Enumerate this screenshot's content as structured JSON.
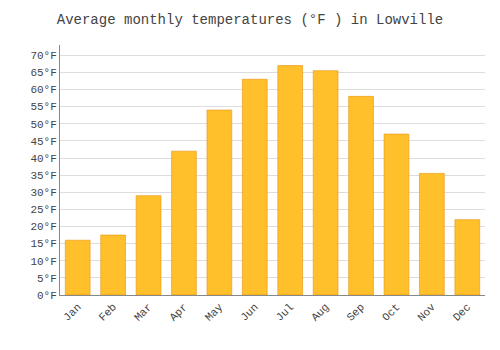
{
  "chart_data": {
    "type": "bar",
    "title": "Average monthly temperatures (°F ) in Lowville",
    "categories": [
      "Jan",
      "Feb",
      "Mar",
      "Apr",
      "May",
      "Jun",
      "Jul",
      "Aug",
      "Sep",
      "Oct",
      "Nov",
      "Dec"
    ],
    "values": [
      16,
      17.5,
      29,
      42,
      54,
      63,
      67,
      65.5,
      58,
      47,
      35.5,
      22
    ],
    "color": "#FFC02C",
    "ylim": [
      0,
      73
    ],
    "yticks": [
      {
        "value": 0,
        "label": "0°F"
      },
      {
        "value": 5,
        "label": "5°F"
      },
      {
        "value": 10,
        "label": "10°F"
      },
      {
        "value": 15,
        "label": "15°F"
      },
      {
        "value": 20,
        "label": "20°F"
      },
      {
        "value": 25,
        "label": "25°F"
      },
      {
        "value": 30,
        "label": "30°F"
      },
      {
        "value": 35,
        "label": "35°F"
      },
      {
        "value": 40,
        "label": "40°F"
      },
      {
        "value": 45,
        "label": "45°F"
      },
      {
        "value": 50,
        "label": "50°F"
      },
      {
        "value": 55,
        "label": "55°F"
      },
      {
        "value": 60,
        "label": "60°F"
      },
      {
        "value": 65,
        "label": "65°F"
      },
      {
        "value": 70,
        "label": "70°F"
      }
    ],
    "grid": true
  }
}
